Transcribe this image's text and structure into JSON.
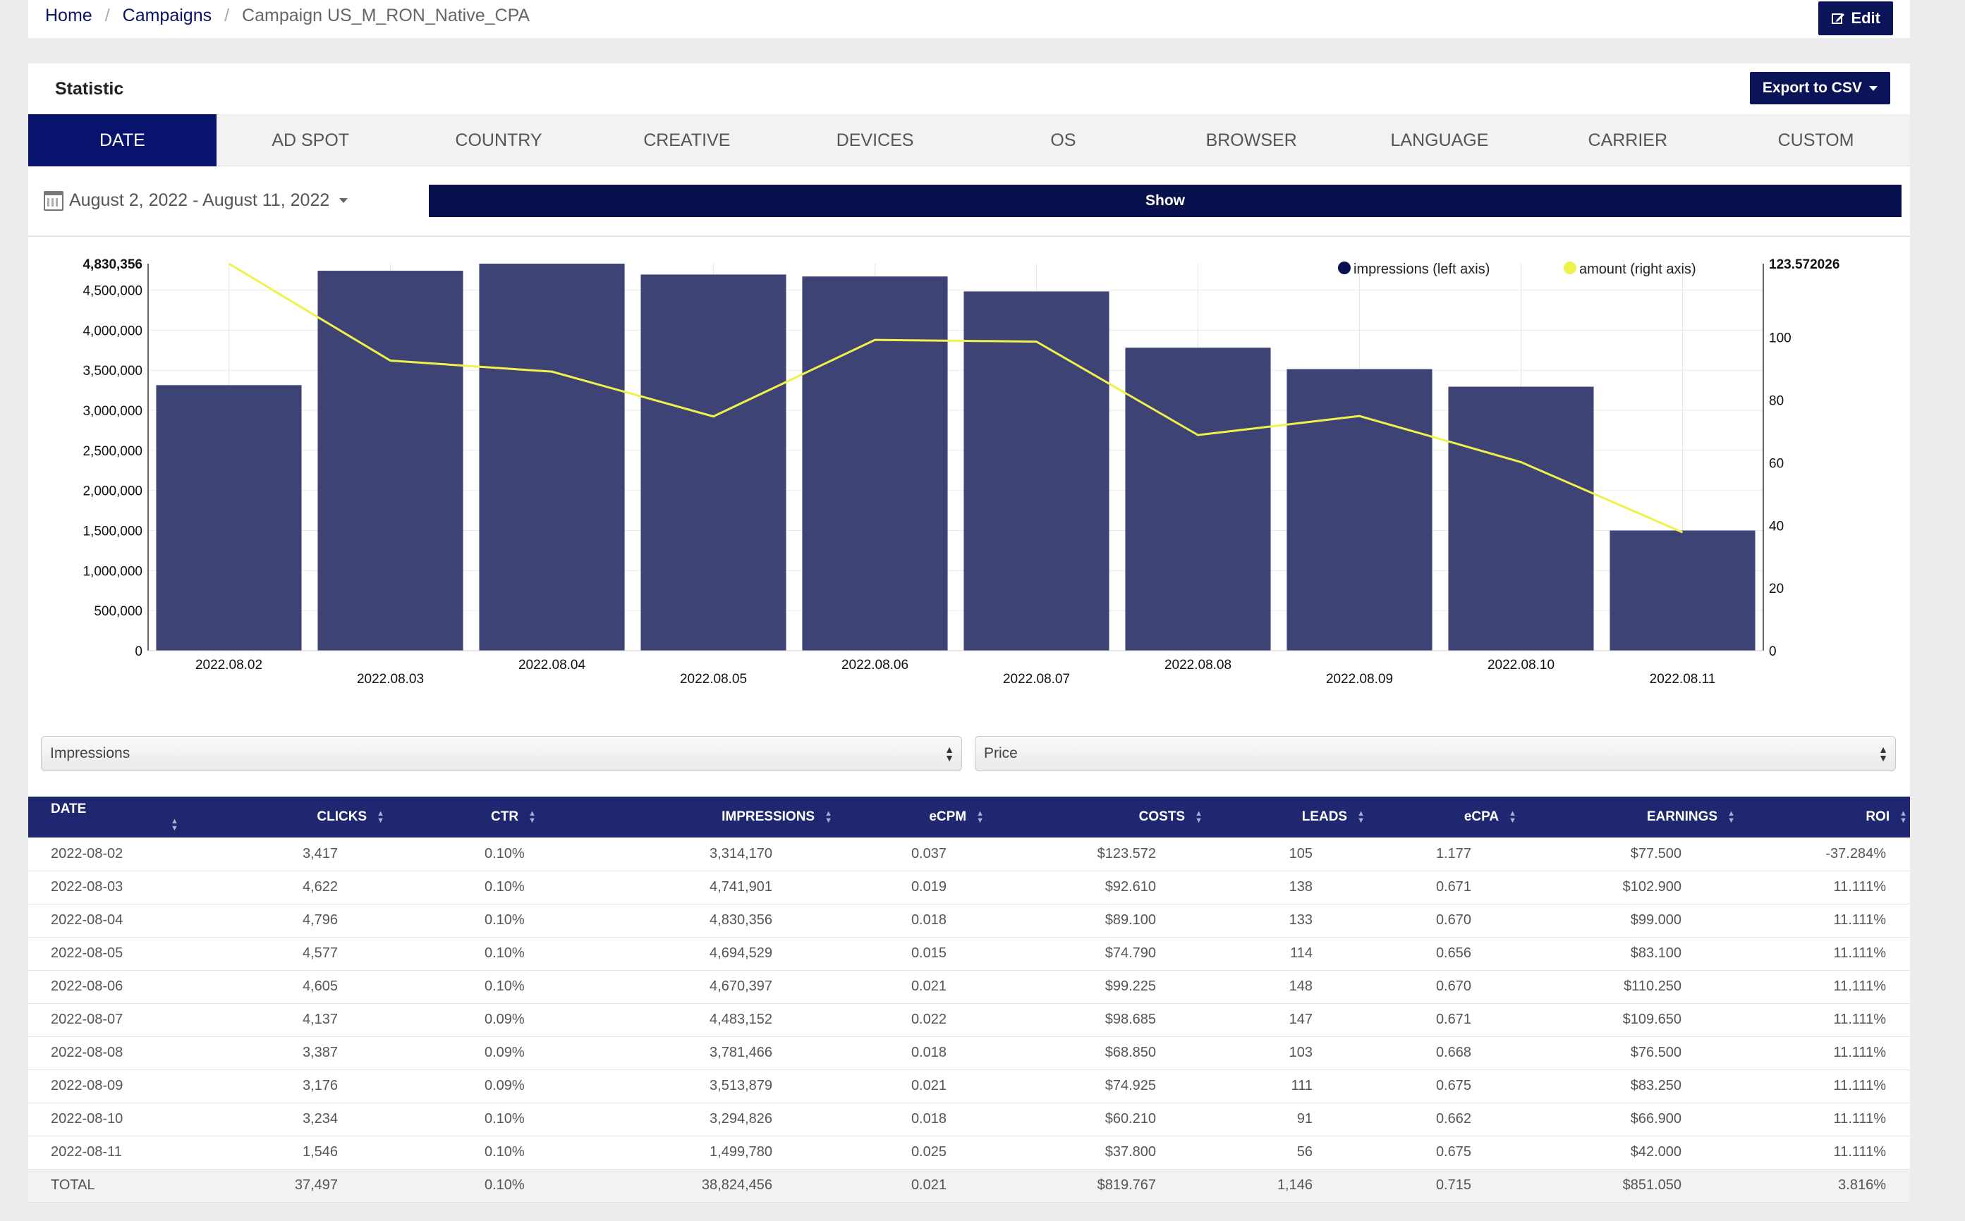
{
  "breadcrumb": {
    "home": "Home",
    "campaigns": "Campaigns",
    "current": "Campaign US_M_RON_Native_CPA"
  },
  "header": {
    "edit_label": "Edit"
  },
  "panel": {
    "title": "Statistic",
    "export_label": "Export to CSV"
  },
  "tabs": [
    "DATE",
    "AD SPOT",
    "COUNTRY",
    "CREATIVE",
    "DEVICES",
    "OS",
    "BROWSER",
    "LANGUAGE",
    "CARRIER",
    "CUSTOM"
  ],
  "active_tab": "DATE",
  "filter": {
    "date_range": "August 2, 2022 - August 11, 2022",
    "show_label": "Show"
  },
  "selects": {
    "left": "Impressions",
    "right": "Price"
  },
  "colors": {
    "accent": "#08136e",
    "bar": "#3d4374",
    "line": "#eef24a",
    "legend_impr": "#08104e",
    "legend_amount": "#eef24a"
  },
  "chart_data": {
    "type": "bar",
    "categories": [
      "2022.08.02",
      "2022.08.03",
      "2022.08.04",
      "2022.08.05",
      "2022.08.06",
      "2022.08.07",
      "2022.08.08",
      "2022.08.09",
      "2022.08.10",
      "2022.08.11"
    ],
    "series": [
      {
        "name": "impressions (left axis)",
        "type": "bar",
        "axis": "left",
        "values": [
          3314170,
          4741901,
          4830356,
          4694529,
          4670397,
          4483152,
          3781466,
          3513879,
          3294826,
          1499780
        ]
      },
      {
        "name": "amount (right axis)",
        "type": "line",
        "axis": "right",
        "values": [
          123.572,
          92.61,
          89.1,
          74.79,
          99.225,
          98.685,
          68.85,
          74.925,
          60.21,
          37.8
        ]
      }
    ],
    "left_axis": {
      "ticks": [
        "0",
        "500,000",
        "1,000,000",
        "1,500,000",
        "2,000,000",
        "2,500,000",
        "3,000,000",
        "3,500,000",
        "4,000,000",
        "4,500,000"
      ],
      "max_label": "4,830,356",
      "ylim": [
        0,
        4830356
      ]
    },
    "right_axis": {
      "ticks": [
        "0",
        "20",
        "40",
        "60",
        "80",
        "100"
      ],
      "max_label": "123.572026",
      "ylim": [
        0,
        123.572026
      ]
    },
    "legend": [
      "impressions (left axis)",
      "amount (right axis)"
    ],
    "legend_position": "top-right",
    "grid": true
  },
  "table": {
    "headers": [
      "DATE",
      "CLICKS",
      "CTR",
      "IMPRESSIONS",
      "eCPM",
      "COSTS",
      "LEADS",
      "eCPA",
      "EARNINGS",
      "ROI"
    ],
    "rows": [
      [
        "2022-08-02",
        "3,417",
        "0.10%",
        "3,314,170",
        "0.037",
        "$123.572",
        "105",
        "1.177",
        "$77.500",
        "-37.284%"
      ],
      [
        "2022-08-03",
        "4,622",
        "0.10%",
        "4,741,901",
        "0.019",
        "$92.610",
        "138",
        "0.671",
        "$102.900",
        "11.111%"
      ],
      [
        "2022-08-04",
        "4,796",
        "0.10%",
        "4,830,356",
        "0.018",
        "$89.100",
        "133",
        "0.670",
        "$99.000",
        "11.111%"
      ],
      [
        "2022-08-05",
        "4,577",
        "0.10%",
        "4,694,529",
        "0.015",
        "$74.790",
        "114",
        "0.656",
        "$83.100",
        "11.111%"
      ],
      [
        "2022-08-06",
        "4,605",
        "0.10%",
        "4,670,397",
        "0.021",
        "$99.225",
        "148",
        "0.670",
        "$110.250",
        "11.111%"
      ],
      [
        "2022-08-07",
        "4,137",
        "0.09%",
        "4,483,152",
        "0.022",
        "$98.685",
        "147",
        "0.671",
        "$109.650",
        "11.111%"
      ],
      [
        "2022-08-08",
        "3,387",
        "0.09%",
        "3,781,466",
        "0.018",
        "$68.850",
        "103",
        "0.668",
        "$76.500",
        "11.111%"
      ],
      [
        "2022-08-09",
        "3,176",
        "0.09%",
        "3,513,879",
        "0.021",
        "$74.925",
        "111",
        "0.675",
        "$83.250",
        "11.111%"
      ],
      [
        "2022-08-10",
        "3,234",
        "0.10%",
        "3,294,826",
        "0.018",
        "$60.210",
        "91",
        "0.662",
        "$66.900",
        "11.111%"
      ],
      [
        "2022-08-11",
        "1,546",
        "0.10%",
        "1,499,780",
        "0.025",
        "$37.800",
        "56",
        "0.675",
        "$42.000",
        "11.111%"
      ]
    ],
    "total": [
      "TOTAL",
      "37,497",
      "0.10%",
      "38,824,456",
      "0.021",
      "$819.767",
      "1,146",
      "0.715",
      "$851.050",
      "3.816%"
    ]
  }
}
